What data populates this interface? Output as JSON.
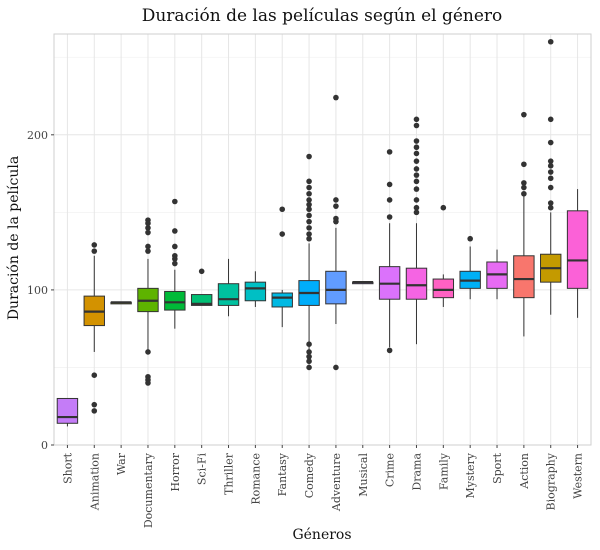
{
  "chart_data": {
    "type": "boxplot",
    "title": "Duración de las películas según el género",
    "xlabel": "Géneros",
    "ylabel": "Duración de la película",
    "ylim": [
      0,
      265
    ],
    "yticks": [
      0,
      100,
      200
    ],
    "grid": true,
    "legend": "none",
    "categories": [
      "Short",
      "Animation",
      "War",
      "Documentary",
      "Horror",
      "Sci-Fi",
      "Thriller",
      "Romance",
      "Fantasy",
      "Comedy",
      "Adventure",
      "Musical",
      "Crime",
      "Drama",
      "Family",
      "Mystery",
      "Sport",
      "Action",
      "Biography",
      "Western"
    ],
    "series": [
      {
        "category": "Short",
        "color": "#c47cf7",
        "min": 12,
        "q1": 14,
        "median": 18,
        "q3": 30,
        "max": 30,
        "outliers": []
      },
      {
        "category": "Animation",
        "color": "#d39200",
        "min": 60,
        "q1": 77,
        "median": 86,
        "q3": 96,
        "max": 122,
        "outliers": [
          129,
          125,
          45,
          26,
          22
        ]
      },
      {
        "category": "War",
        "color": "#93aa00",
        "min": 91,
        "q1": 91,
        "median": 92,
        "q3": 92,
        "max": 92,
        "outliers": []
      },
      {
        "category": "Documentary",
        "color": "#5eb300",
        "min": 60,
        "q1": 86,
        "median": 93,
        "q3": 101,
        "max": 120,
        "outliers": [
          145,
          143,
          140,
          137,
          128,
          125,
          60,
          44,
          42,
          40
        ]
      },
      {
        "category": "Horror",
        "color": "#00ba38",
        "min": 75,
        "q1": 87,
        "median": 92,
        "q3": 99,
        "max": 113,
        "outliers": [
          157,
          138,
          128,
          122,
          120,
          117
        ]
      },
      {
        "category": "Sci-Fi",
        "color": "#00bf74",
        "min": 90,
        "q1": 90,
        "median": 91,
        "q3": 97,
        "max": 97,
        "outliers": [
          112
        ]
      },
      {
        "category": "Thriller",
        "color": "#00c19f",
        "min": 83,
        "q1": 90,
        "median": 94,
        "q3": 104,
        "max": 120,
        "outliers": []
      },
      {
        "category": "Romance",
        "color": "#00bfc4",
        "min": 89,
        "q1": 93,
        "median": 101,
        "q3": 105,
        "max": 112,
        "outliers": []
      },
      {
        "category": "Fantasy",
        "color": "#00b9e3",
        "min": 76,
        "q1": 89,
        "median": 95,
        "q3": 98,
        "max": 100,
        "outliers": [
          152,
          136
        ]
      },
      {
        "category": "Comedy",
        "color": "#00adfa",
        "min": 52,
        "q1": 90,
        "median": 98,
        "q3": 106,
        "max": 130,
        "outliers": [
          186,
          170,
          166,
          162,
          158,
          155,
          152,
          148,
          144,
          140,
          136,
          133,
          65,
          60,
          57,
          54,
          50
        ]
      },
      {
        "category": "Adventure",
        "color": "#619cff",
        "min": 78,
        "q1": 91,
        "median": 100,
        "q3": 112,
        "max": 140,
        "outliers": [
          224,
          158,
          154,
          146,
          144,
          50
        ]
      },
      {
        "category": "Musical",
        "color": "#ae87ff",
        "min": 104,
        "q1": 104,
        "median": 105,
        "q3": 105,
        "max": 105,
        "outliers": []
      },
      {
        "category": "Crime",
        "color": "#db72fb",
        "min": 63,
        "q1": 94,
        "median": 104,
        "q3": 115,
        "max": 143,
        "outliers": [
          189,
          168,
          158,
          147,
          61
        ]
      },
      {
        "category": "Drama",
        "color": "#f564e3",
        "min": 65,
        "q1": 94,
        "median": 103,
        "q3": 114,
        "max": 143,
        "outliers": [
          210,
          206,
          196,
          192,
          188,
          183,
          178,
          174,
          170,
          165,
          158,
          153,
          150
        ]
      },
      {
        "category": "Family",
        "color": "#ff61c3",
        "min": 89,
        "q1": 95,
        "median": 100,
        "q3": 107,
        "max": 110,
        "outliers": [
          153
        ]
      },
      {
        "category": "Mystery",
        "color": "#00b0f6",
        "min": 94,
        "q1": 101,
        "median": 106,
        "q3": 112,
        "max": 128,
        "outliers": [
          133
        ]
      },
      {
        "category": "Sport",
        "color": "#e76bf3",
        "min": 94,
        "q1": 101,
        "median": 110,
        "q3": 118,
        "max": 126,
        "outliers": []
      },
      {
        "category": "Action",
        "color": "#f8766d",
        "min": 70,
        "q1": 95,
        "median": 107,
        "q3": 122,
        "max": 162,
        "outliers": [
          213,
          181,
          169,
          166,
          162
        ]
      },
      {
        "category": "Biography",
        "color": "#c49a00",
        "min": 84,
        "q1": 105,
        "median": 114,
        "q3": 123,
        "max": 150,
        "outliers": [
          260,
          210,
          195,
          183,
          180,
          176,
          172,
          166,
          156,
          153
        ]
      },
      {
        "category": "Western",
        "color": "#fb61d7",
        "min": 82,
        "q1": 101,
        "median": 119,
        "q3": 151,
        "max": 165,
        "outliers": []
      }
    ]
  }
}
